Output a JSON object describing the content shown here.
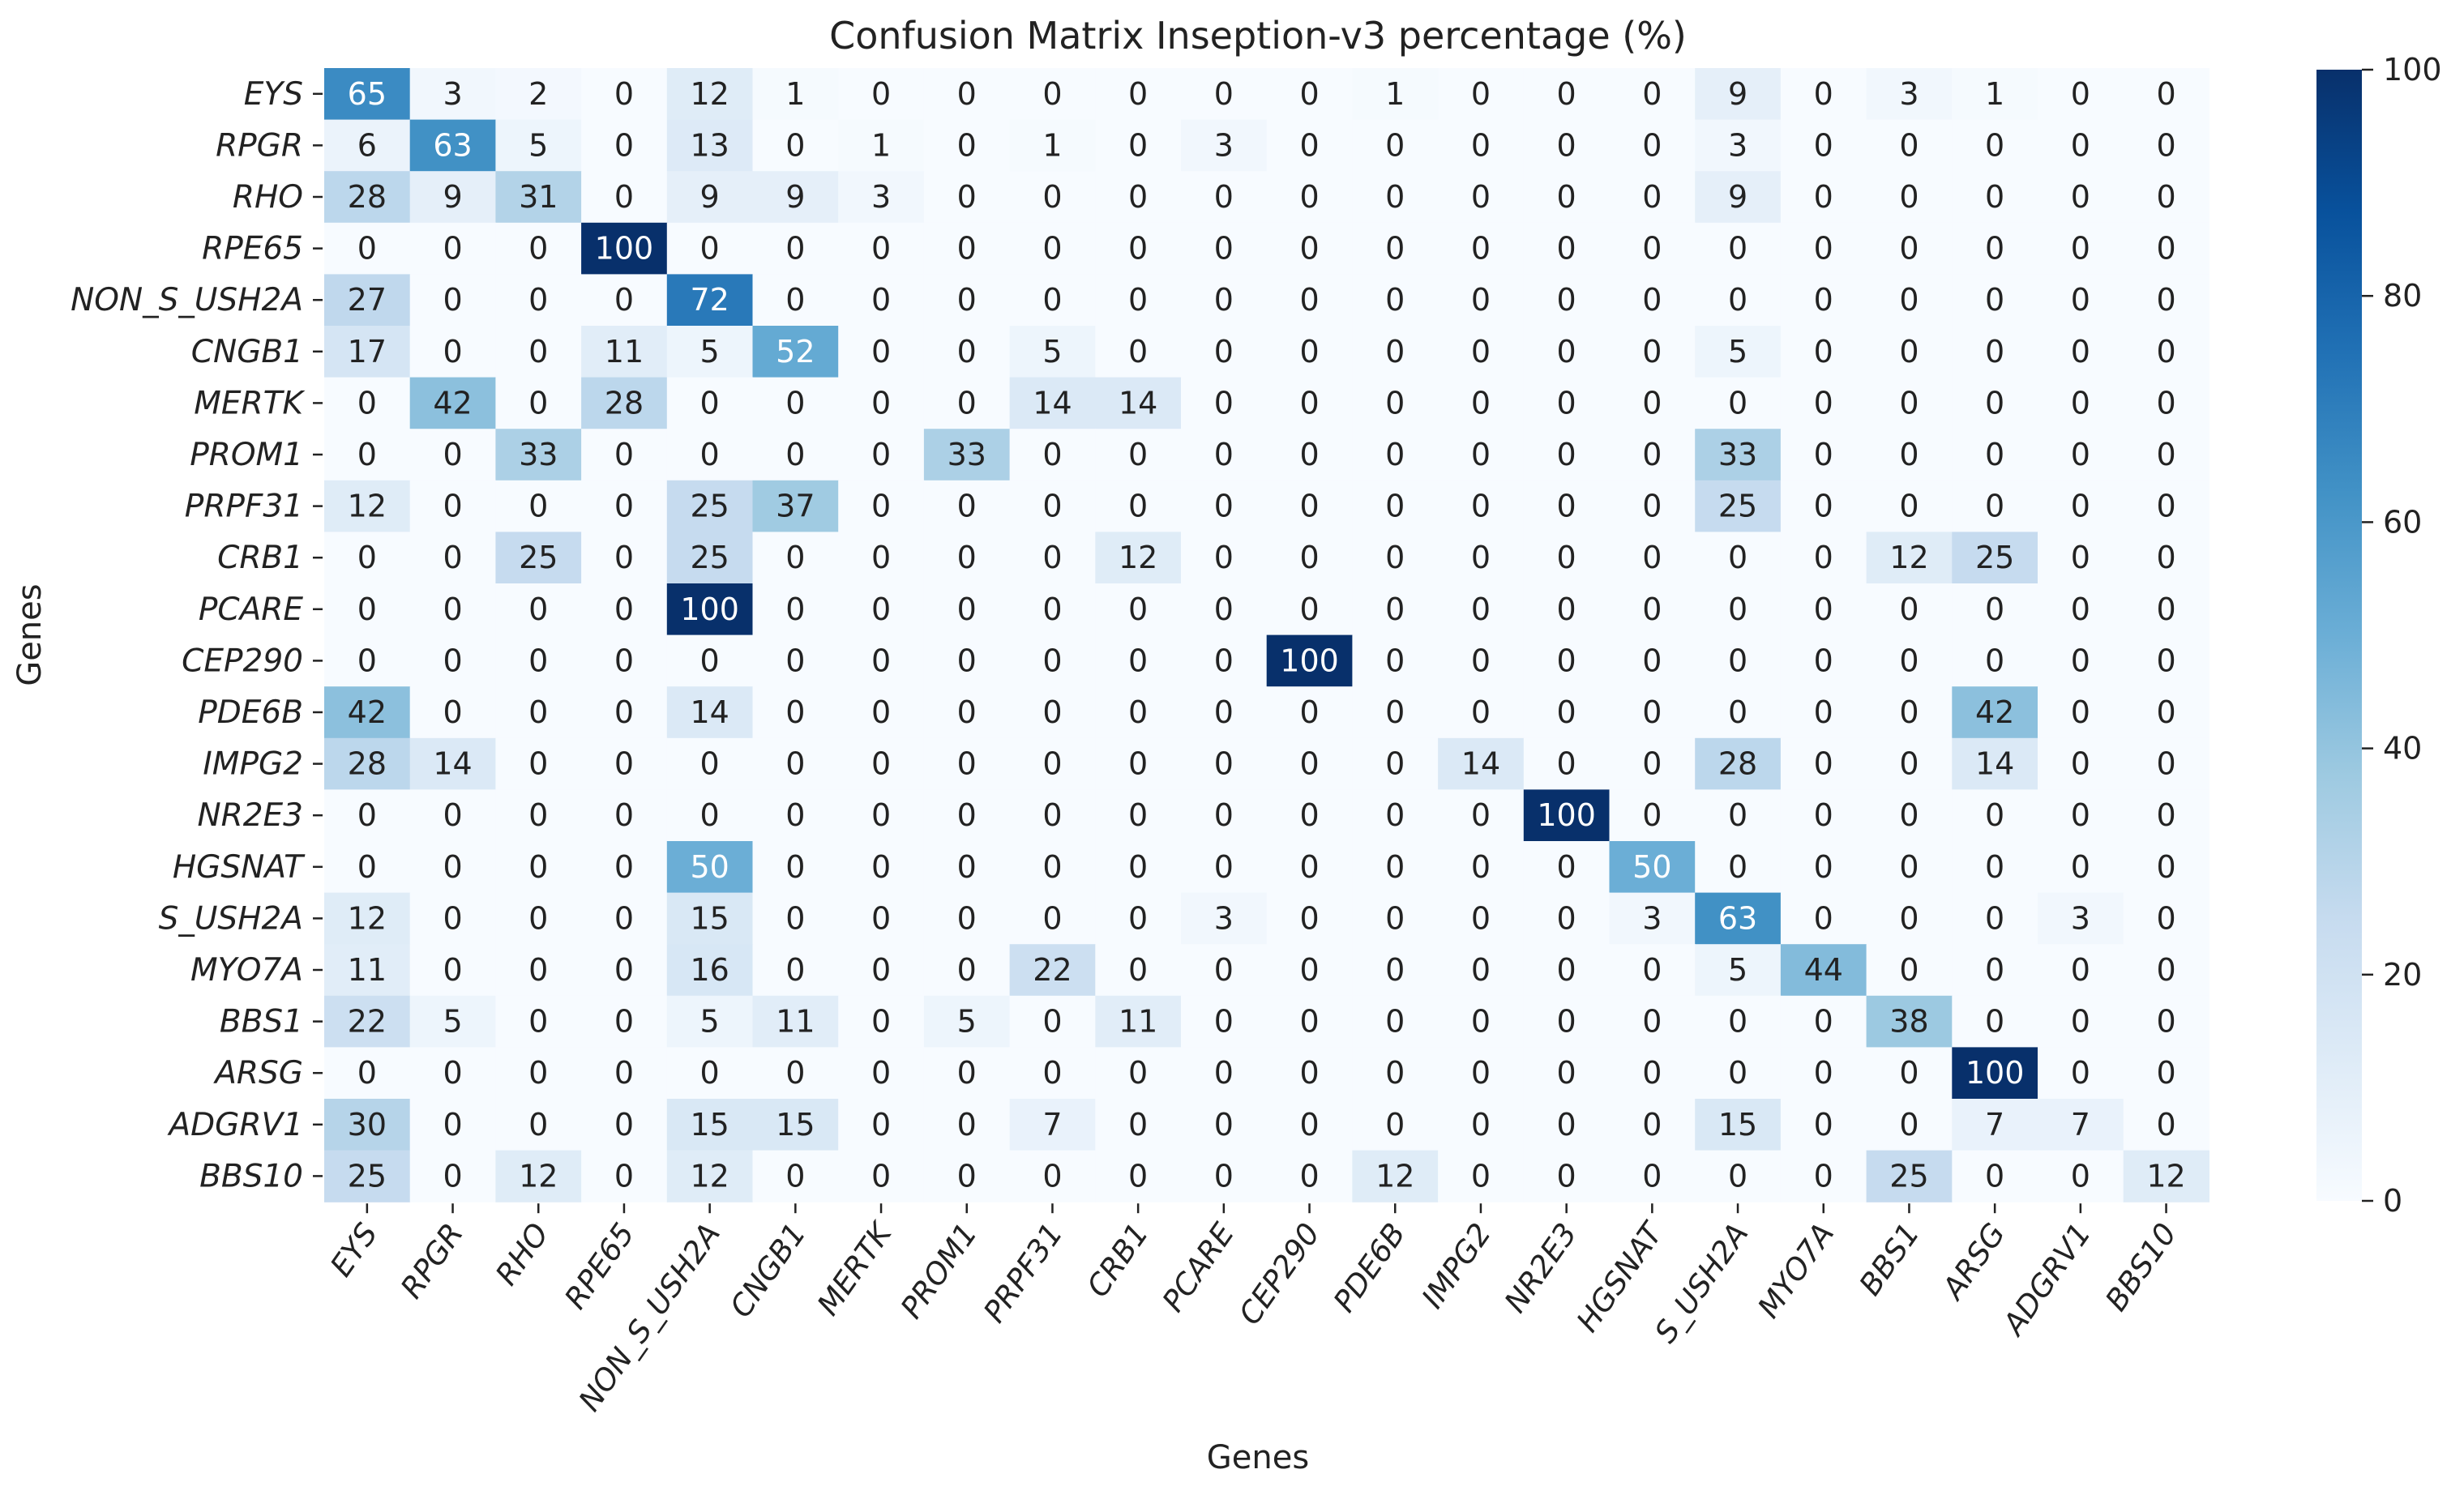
{
  "chart_data": {
    "type": "heatmap",
    "title": "Confusion Matrix Inseption-v3 percentage (%)",
    "xlabel": "Genes",
    "ylabel": "Genes",
    "rows": [
      "EYS",
      "RPGR",
      "RHO",
      "RPE65",
      "NON_S_USH2A",
      "CNGB1",
      "MERTK",
      "PROM1",
      "PRPF31",
      "CRB1",
      "PCARE",
      "CEP290",
      "PDE6B",
      "IMPG2",
      "NR2E3",
      "HGSNAT",
      "S_USH2A",
      "MYO7A",
      "BBS1",
      "ARSG",
      "ADGRV1",
      "BBS10"
    ],
    "columns": [
      "EYS",
      "RPGR",
      "RHO",
      "RPE65",
      "NON_S_USH2A",
      "CNGB1",
      "MERTK",
      "PROM1",
      "PRPF31",
      "CRB1",
      "PCARE",
      "CEP290",
      "PDE6B",
      "IMPG2",
      "NR2E3",
      "HGSNAT",
      "S_USH2A",
      "MYO7A",
      "BBS1",
      "ARSG",
      "ADGRV1",
      "BBS10"
    ],
    "values": [
      [
        65,
        3,
        2,
        0,
        12,
        1,
        0,
        0,
        0,
        0,
        0,
        0,
        1,
        0,
        0,
        0,
        9,
        0,
        3,
        1,
        0,
        0
      ],
      [
        6,
        63,
        5,
        0,
        13,
        0,
        1,
        0,
        1,
        0,
        3,
        0,
        0,
        0,
        0,
        0,
        3,
        0,
        0,
        0,
        0,
        0
      ],
      [
        28,
        9,
        31,
        0,
        9,
        9,
        3,
        0,
        0,
        0,
        0,
        0,
        0,
        0,
        0,
        0,
        9,
        0,
        0,
        0,
        0,
        0
      ],
      [
        0,
        0,
        0,
        100,
        0,
        0,
        0,
        0,
        0,
        0,
        0,
        0,
        0,
        0,
        0,
        0,
        0,
        0,
        0,
        0,
        0,
        0
      ],
      [
        27,
        0,
        0,
        0,
        72,
        0,
        0,
        0,
        0,
        0,
        0,
        0,
        0,
        0,
        0,
        0,
        0,
        0,
        0,
        0,
        0,
        0
      ],
      [
        17,
        0,
        0,
        11,
        5,
        52,
        0,
        0,
        5,
        0,
        0,
        0,
        0,
        0,
        0,
        0,
        5,
        0,
        0,
        0,
        0,
        0
      ],
      [
        0,
        42,
        0,
        28,
        0,
        0,
        0,
        0,
        14,
        14,
        0,
        0,
        0,
        0,
        0,
        0,
        0,
        0,
        0,
        0,
        0,
        0
      ],
      [
        0,
        0,
        33,
        0,
        0,
        0,
        0,
        33,
        0,
        0,
        0,
        0,
        0,
        0,
        0,
        0,
        33,
        0,
        0,
        0,
        0,
        0
      ],
      [
        12,
        0,
        0,
        0,
        25,
        37,
        0,
        0,
        0,
        0,
        0,
        0,
        0,
        0,
        0,
        0,
        25,
        0,
        0,
        0,
        0,
        0
      ],
      [
        0,
        0,
        25,
        0,
        25,
        0,
        0,
        0,
        0,
        12,
        0,
        0,
        0,
        0,
        0,
        0,
        0,
        0,
        12,
        25,
        0,
        0
      ],
      [
        0,
        0,
        0,
        0,
        100,
        0,
        0,
        0,
        0,
        0,
        0,
        0,
        0,
        0,
        0,
        0,
        0,
        0,
        0,
        0,
        0,
        0
      ],
      [
        0,
        0,
        0,
        0,
        0,
        0,
        0,
        0,
        0,
        0,
        0,
        100,
        0,
        0,
        0,
        0,
        0,
        0,
        0,
        0,
        0,
        0
      ],
      [
        42,
        0,
        0,
        0,
        14,
        0,
        0,
        0,
        0,
        0,
        0,
        0,
        0,
        0,
        0,
        0,
        0,
        0,
        0,
        42,
        0,
        0
      ],
      [
        28,
        14,
        0,
        0,
        0,
        0,
        0,
        0,
        0,
        0,
        0,
        0,
        0,
        14,
        0,
        0,
        28,
        0,
        0,
        14,
        0,
        0
      ],
      [
        0,
        0,
        0,
        0,
        0,
        0,
        0,
        0,
        0,
        0,
        0,
        0,
        0,
        0,
        100,
        0,
        0,
        0,
        0,
        0,
        0,
        0
      ],
      [
        0,
        0,
        0,
        0,
        50,
        0,
        0,
        0,
        0,
        0,
        0,
        0,
        0,
        0,
        0,
        50,
        0,
        0,
        0,
        0,
        0,
        0
      ],
      [
        12,
        0,
        0,
        0,
        15,
        0,
        0,
        0,
        0,
        0,
        3,
        0,
        0,
        0,
        0,
        3,
        63,
        0,
        0,
        0,
        3,
        0
      ],
      [
        11,
        0,
        0,
        0,
        16,
        0,
        0,
        0,
        22,
        0,
        0,
        0,
        0,
        0,
        0,
        0,
        5,
        44,
        0,
        0,
        0,
        0
      ],
      [
        22,
        5,
        0,
        0,
        5,
        11,
        0,
        5,
        0,
        11,
        0,
        0,
        0,
        0,
        0,
        0,
        0,
        0,
        38,
        0,
        0,
        0
      ],
      [
        0,
        0,
        0,
        0,
        0,
        0,
        0,
        0,
        0,
        0,
        0,
        0,
        0,
        0,
        0,
        0,
        0,
        0,
        0,
        100,
        0,
        0
      ],
      [
        30,
        0,
        0,
        0,
        15,
        15,
        0,
        0,
        7,
        0,
        0,
        0,
        0,
        0,
        0,
        0,
        15,
        0,
        0,
        7,
        7,
        0
      ],
      [
        25,
        0,
        12,
        0,
        12,
        0,
        0,
        0,
        0,
        0,
        0,
        0,
        12,
        0,
        0,
        0,
        0,
        0,
        25,
        0,
        0,
        12
      ]
    ],
    "vmin": 0,
    "vmax": 100,
    "colorbar_ticks": [
      0,
      20,
      40,
      60,
      80,
      100
    ],
    "colormap": [
      "#f7fbff",
      "#deebf7",
      "#c6dbef",
      "#9ecae1",
      "#6baed6",
      "#4292c6",
      "#2171b5",
      "#08519c",
      "#08306b"
    ],
    "text_dark": "#222222",
    "text_light": "#ffffff"
  }
}
